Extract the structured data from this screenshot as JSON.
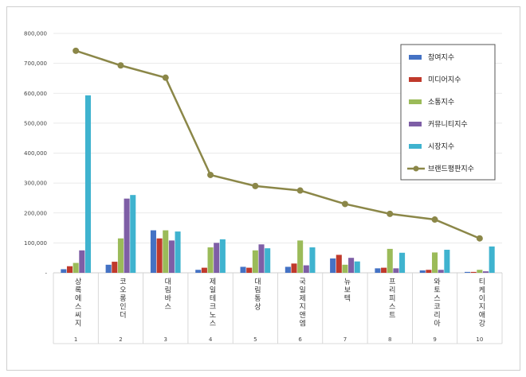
{
  "chart_data": {
    "type": "bar",
    "categories": [
      "상록에스씨지",
      "코오롱인더",
      "대림바스",
      "제일테크노스",
      "대림통상",
      "국일제지앤엠",
      "뉴보텍",
      "프리피스트",
      "와토스코리아",
      "티케이지애강"
    ],
    "category_numbers": [
      "1",
      "2",
      "3",
      "4",
      "5",
      "6",
      "7",
      "8",
      "9",
      "10"
    ],
    "y_ticks": [
      "800,000",
      "700,000",
      "600,000",
      "500,000",
      "400,000",
      "300,000",
      "200,000",
      "100,000",
      "-"
    ],
    "ylim": [
      0,
      800000
    ],
    "series": [
      {
        "name": "참여지수",
        "kind": "bar",
        "color": "#4472c4",
        "values": [
          12000,
          27000,
          142000,
          10000,
          20000,
          20000,
          48000,
          15000,
          8000,
          3000
        ]
      },
      {
        "name": "미디어지수",
        "kind": "bar",
        "color": "#c0392b",
        "values": [
          22000,
          37000,
          115000,
          17000,
          17000,
          31000,
          60000,
          17000,
          10000,
          3000
        ]
      },
      {
        "name": "소통지수",
        "kind": "bar",
        "color": "#9bbb59",
        "values": [
          33000,
          115000,
          142000,
          85000,
          75000,
          108000,
          27000,
          80000,
          68000,
          10000
        ]
      },
      {
        "name": "커뮤니티지수",
        "kind": "bar",
        "color": "#7e5ea6",
        "values": [
          75000,
          248000,
          108000,
          100000,
          95000,
          25000,
          50000,
          15000,
          10000,
          5000
        ]
      },
      {
        "name": "시장지수",
        "kind": "bar",
        "color": "#3fb3cf",
        "values": [
          593000,
          260000,
          138000,
          112000,
          82000,
          85000,
          38000,
          67000,
          77000,
          88000
        ]
      },
      {
        "name": "브랜드평판지수",
        "kind": "line",
        "color": "#8b8748",
        "values": [
          742000,
          693000,
          652000,
          327000,
          290000,
          275000,
          230000,
          197000,
          178000,
          115000
        ]
      }
    ],
    "grid": true,
    "legend_position": "top-right"
  }
}
